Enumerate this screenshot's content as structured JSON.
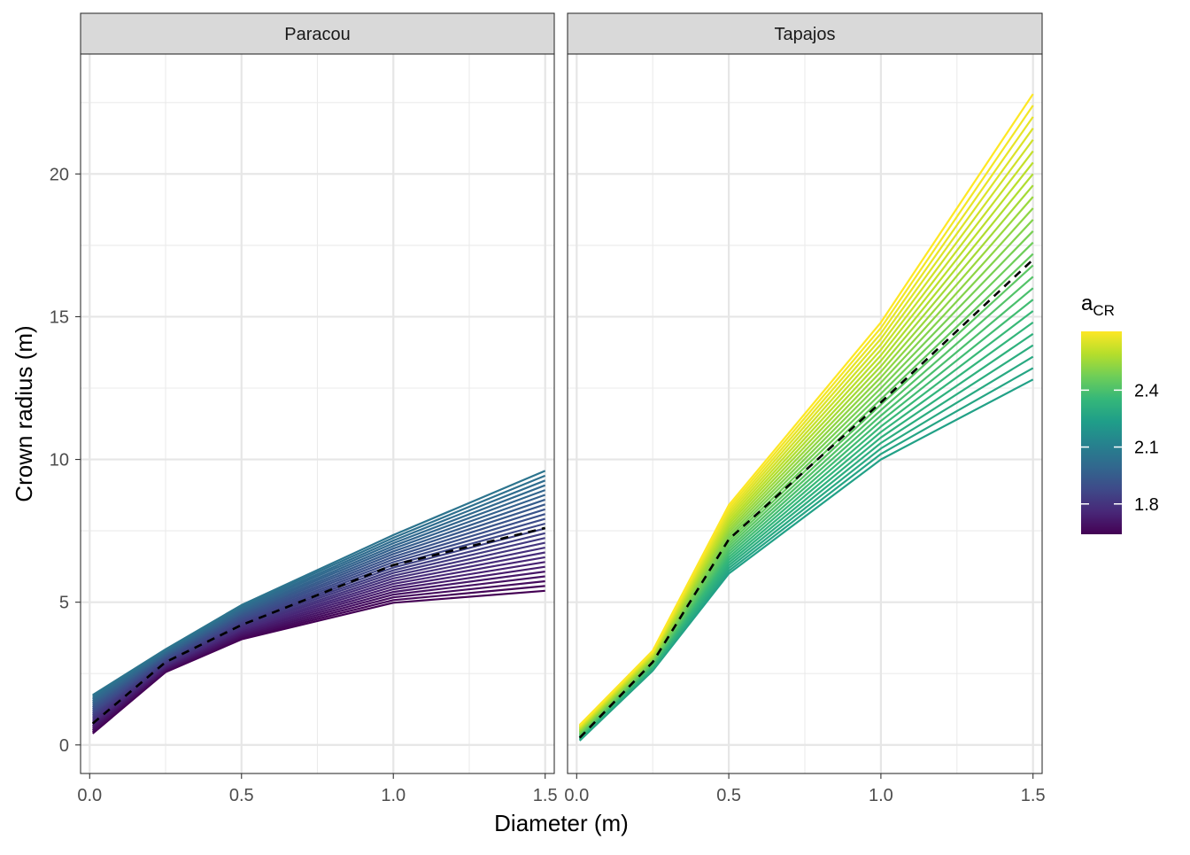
{
  "chart_data": {
    "type": "line",
    "xlabel": "Diameter (m)",
    "ylabel": "Crown radius (m)",
    "xlim": [
      -0.03,
      1.53
    ],
    "ylim": [
      -1.0,
      24.2
    ],
    "x_ticks": [
      0.0,
      0.5,
      1.0,
      1.5
    ],
    "x_tick_labels": [
      "0.0",
      "0.5",
      "1.0",
      "1.5"
    ],
    "y_ticks": [
      0,
      5,
      10,
      15,
      20
    ],
    "y_tick_labels": [
      "0",
      "5",
      "10",
      "15",
      "20"
    ],
    "grid": true,
    "x_breaks": [
      0.01,
      0.25,
      0.5,
      1.0,
      1.5
    ],
    "legend": {
      "title_main": "a",
      "title_sub": "CR",
      "position": "right",
      "ticks": [
        1.8,
        2.1,
        2.4
      ],
      "tick_labels": [
        "1.8",
        "2.1",
        "2.4"
      ],
      "range": [
        1.64,
        2.71
      ],
      "colors": [
        "#440154",
        "#482878",
        "#3e4a89",
        "#31688e",
        "#26828e",
        "#1f9e89",
        "#35b779",
        "#6ece58",
        "#b5de2b",
        "#fde725"
      ]
    },
    "panels": [
      {
        "name": "Paracou",
        "a_range": [
          1.64,
          2.05
        ],
        "line_count": 26,
        "min_curve": [
          0.4,
          2.55,
          3.7,
          4.98,
          5.4
        ],
        "max_curve": [
          1.75,
          3.35,
          4.9,
          7.35,
          9.6
        ],
        "max_curve_color_value": 2.05,
        "mean_curve": [
          0.75,
          2.9,
          4.2,
          6.3,
          7.6
        ]
      },
      {
        "name": "Tapajos",
        "a_range": [
          2.25,
          2.71
        ],
        "line_count": 26,
        "min_curve": [
          0.15,
          2.6,
          6.0,
          10.0,
          12.8
        ],
        "max_curve": [
          0.7,
          3.3,
          8.4,
          14.8,
          22.8
        ],
        "max_curve_color_value": 2.71,
        "mean_curve": [
          0.25,
          2.9,
          7.2,
          12.0,
          17.0
        ]
      }
    ]
  }
}
